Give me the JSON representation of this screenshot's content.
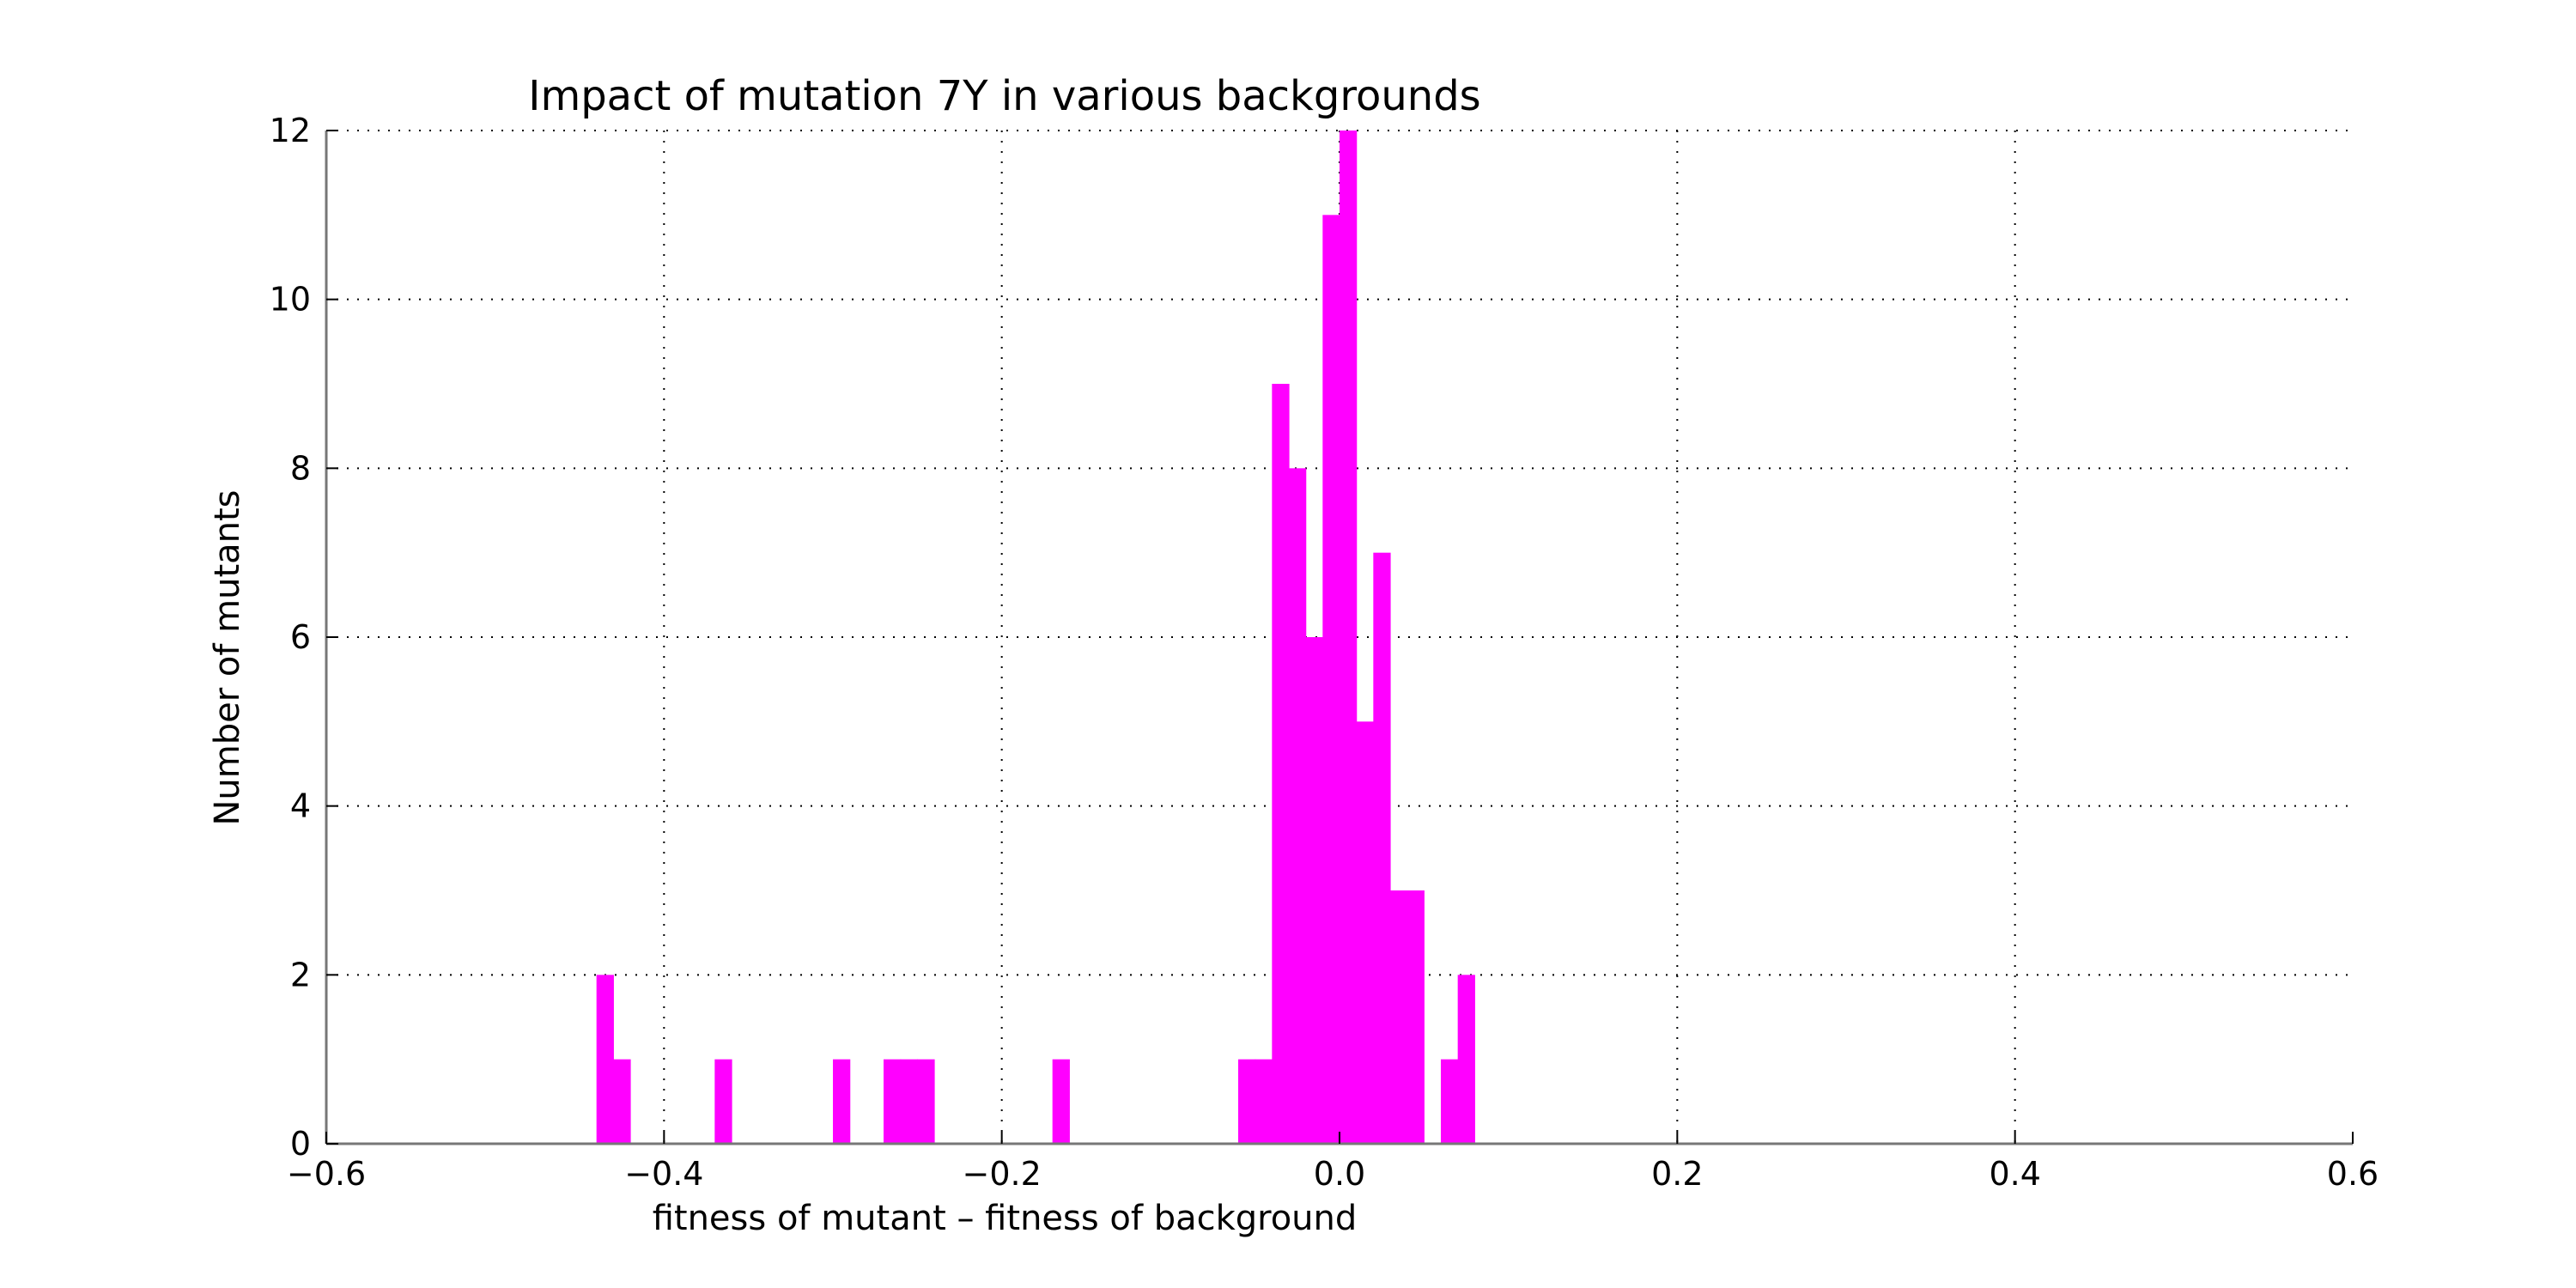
{
  "chart_data": {
    "type": "bar",
    "title": "Impact of mutation 7Y in various backgrounds",
    "xlabel": "fitness of mutant  –  fitness of background",
    "ylabel": "Number of mutants",
    "xlim": [
      -0.6,
      0.6
    ],
    "ylim": [
      0,
      12
    ],
    "xticks": [
      -0.6,
      -0.4,
      -0.2,
      0.0,
      0.2,
      0.4,
      0.6
    ],
    "xtick_labels": [
      "−0.6",
      "−0.4",
      "−0.2",
      "0.0",
      "0.2",
      "0.4",
      "0.6"
    ],
    "yticks": [
      0,
      2,
      4,
      6,
      8,
      10,
      12
    ],
    "ytick_labels": [
      "0",
      "2",
      "4",
      "6",
      "8",
      "10",
      "12"
    ],
    "grid": true,
    "bar_color": "#ff00ff",
    "bins": [
      {
        "x0": -0.44,
        "x1": -0.43,
        "count": 2
      },
      {
        "x0": -0.43,
        "x1": -0.42,
        "count": 1
      },
      {
        "x0": -0.37,
        "x1": -0.36,
        "count": 1
      },
      {
        "x0": -0.3,
        "x1": -0.29,
        "count": 1
      },
      {
        "x0": -0.27,
        "x1": -0.26,
        "count": 1
      },
      {
        "x0": -0.26,
        "x1": -0.25,
        "count": 1
      },
      {
        "x0": -0.25,
        "x1": -0.24,
        "count": 1
      },
      {
        "x0": -0.17,
        "x1": -0.16,
        "count": 1
      },
      {
        "x0": -0.06,
        "x1": -0.05,
        "count": 1
      },
      {
        "x0": -0.05,
        "x1": -0.04,
        "count": 1
      },
      {
        "x0": -0.04,
        "x1": -0.03,
        "count": 9
      },
      {
        "x0": -0.03,
        "x1": -0.02,
        "count": 8
      },
      {
        "x0": -0.02,
        "x1": -0.01,
        "count": 6
      },
      {
        "x0": -0.01,
        "x1": 0.0,
        "count": 11
      },
      {
        "x0": 0.0,
        "x1": 0.01,
        "count": 12
      },
      {
        "x0": 0.01,
        "x1": 0.02,
        "count": 5
      },
      {
        "x0": 0.02,
        "x1": 0.03,
        "count": 7
      },
      {
        "x0": 0.03,
        "x1": 0.04,
        "count": 3
      },
      {
        "x0": 0.04,
        "x1": 0.05,
        "count": 3
      },
      {
        "x0": 0.06,
        "x1": 0.07,
        "count": 1
      },
      {
        "x0": 0.07,
        "x1": 0.08,
        "count": 2
      }
    ]
  }
}
